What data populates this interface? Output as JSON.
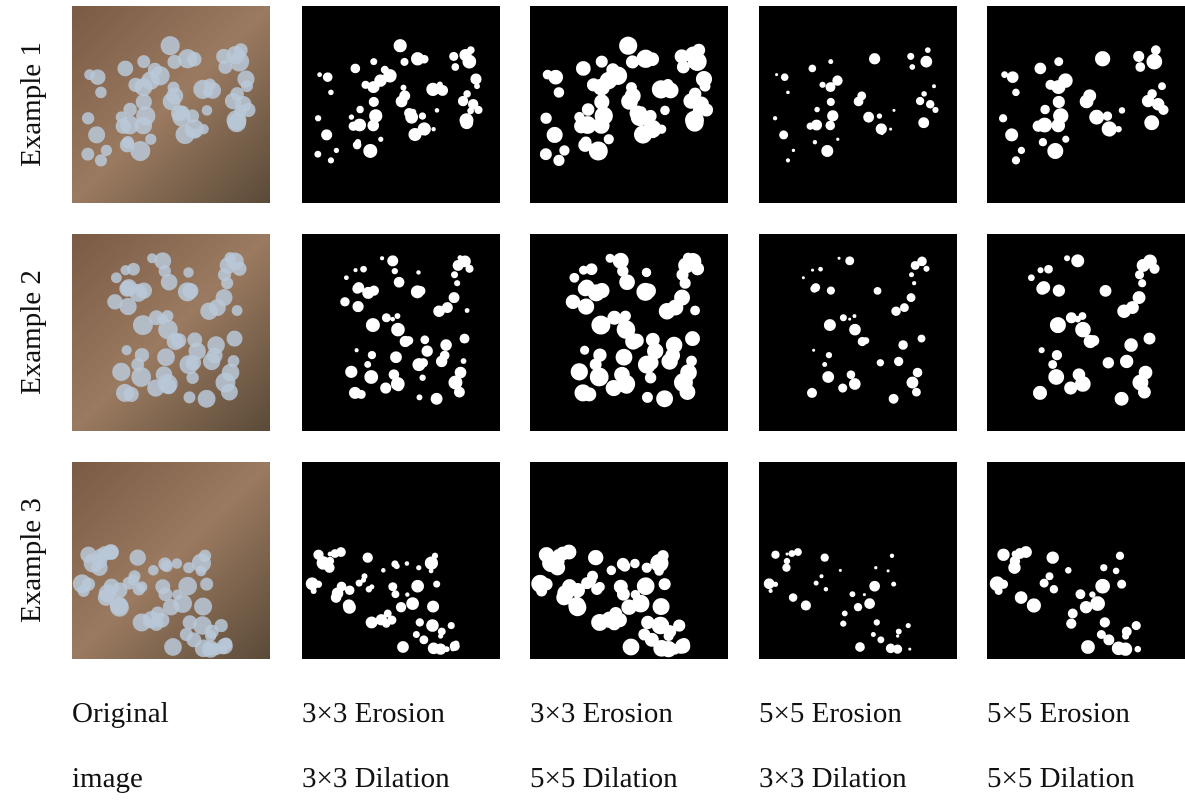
{
  "rows": [
    {
      "label": "Example 1"
    },
    {
      "label": "Example 2"
    },
    {
      "label": "Example 3"
    }
  ],
  "columns": [
    {
      "lines": [
        "Original",
        "image"
      ]
    },
    {
      "lines": [
        "3×3 Erosion",
        "3×3 Dilation"
      ]
    },
    {
      "lines": [
        "3×3 Erosion",
        "5×5 Dilation"
      ]
    },
    {
      "lines": [
        "5×5 Erosion",
        "3×3 Dilation"
      ]
    },
    {
      "lines": [
        "5×5 Erosion",
        "5×5 Dilation"
      ]
    }
  ]
}
